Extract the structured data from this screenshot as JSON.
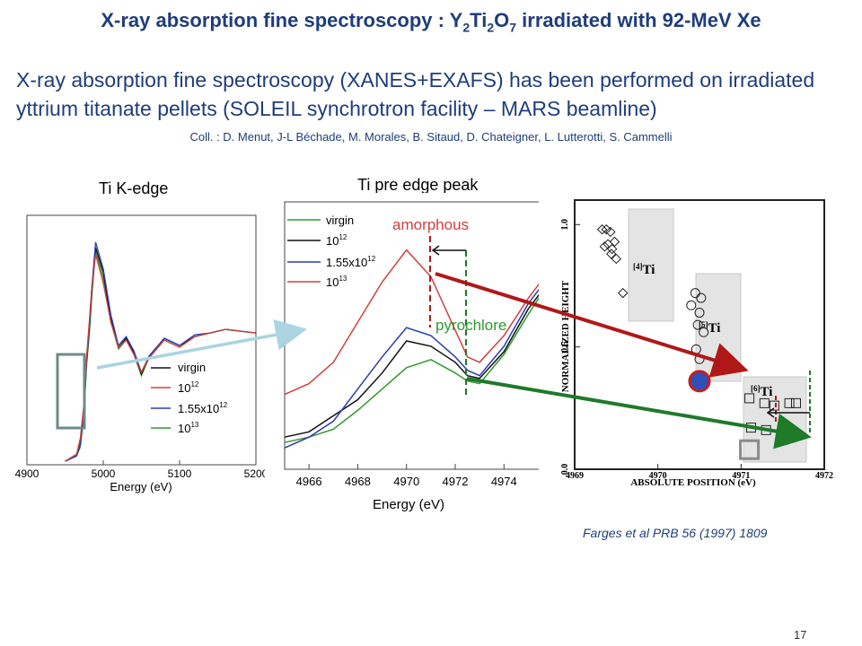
{
  "slide": {
    "title_prefix": "X-ray absorption fine spectroscopy : Y",
    "title_sub1": "2",
    "title_mid1": "Ti",
    "title_sub2": "2",
    "title_mid2": "O",
    "title_sub3": "7",
    "title_suffix": " irradiated with 92-MeV Xe",
    "intro_line1": "X-ray absorption fine spectroscopy (XANES+EXAFS) has been performed on irradiated",
    "intro_line2": "yttrium titanate pellets (SOLEIL synchrotron facility – MARS beamline)",
    "collaborators": "Coll. : D. Menut, J-L Béchade, M. Morales, B. Sitaud, D. Chateigner, L. Lutterotti, S. Cammelli",
    "reference": "Farges et al PRB 56 (1997) 1809",
    "page_number": "17"
  },
  "colors": {
    "title": "#1f3d7a",
    "virgin": "#2e9a2e",
    "dose_1e12": "#111111",
    "dose_1_55e12": "#2a3db5",
    "dose_1e13": "#d0403c",
    "amorphous": "#d0403c",
    "pyrochlore": "#2e9a2e",
    "arrow_red": "#b01818",
    "arrow_green": "#1f7a2a",
    "zoom_box": "#6e8a8a",
    "zoom_arrow": "#a9d4e0"
  },
  "legend": {
    "virgin": "virgin",
    "d1_base": "10",
    "d1_exp": "12",
    "d2_base": "1.55x10",
    "d2_exp": "12",
    "d3_base": "10",
    "d3_exp": "13"
  },
  "chart_data": [
    {
      "type": "line",
      "caption": "Ti K-edge",
      "xlabel": "Energy (eV)",
      "xlim": [
        4900,
        5200
      ],
      "xticks": [
        "4900",
        "5000",
        "5100",
        "5200"
      ],
      "legend_position": "bottom-right",
      "series": [
        {
          "name": "virgin",
          "x": [
            4950,
            4965,
            4970,
            4975,
            4978,
            4982,
            4985,
            4990,
            5000,
            5010,
            5020,
            5030,
            5040,
            5050,
            5060,
            5080,
            5100,
            5120,
            5140,
            5160,
            5180,
            5200
          ],
          "y": [
            0.02,
            0.05,
            0.1,
            0.3,
            0.55,
            0.75,
            0.95,
            1.2,
            1.05,
            0.8,
            0.65,
            0.7,
            0.62,
            0.5,
            0.6,
            0.7,
            0.66,
            0.72,
            0.74,
            0.76,
            0.75,
            0.74
          ]
        },
        {
          "name": "10^12",
          "x": [
            4950,
            4965,
            4970,
            4975,
            4978,
            4982,
            4985,
            4990,
            5000,
            5010,
            5020,
            5030,
            5040,
            5050,
            5060,
            5080,
            5100,
            5120,
            5140,
            5160,
            5180,
            5200
          ],
          "y": [
            0.02,
            0.05,
            0.12,
            0.32,
            0.57,
            0.78,
            0.98,
            1.22,
            1.08,
            0.82,
            0.66,
            0.71,
            0.63,
            0.51,
            0.61,
            0.71,
            0.67,
            0.72,
            0.74,
            0.76,
            0.75,
            0.74
          ]
        },
        {
          "name": "1.55x10^12",
          "x": [
            4950,
            4965,
            4970,
            4975,
            4978,
            4982,
            4985,
            4990,
            5000,
            5010,
            5020,
            5030,
            5040,
            5050,
            5060,
            5080,
            5100,
            5120,
            5140,
            5160,
            5180,
            5200
          ],
          "y": [
            0.02,
            0.05,
            0.12,
            0.33,
            0.58,
            0.8,
            1.0,
            1.25,
            1.1,
            0.84,
            0.67,
            0.72,
            0.64,
            0.52,
            0.61,
            0.71,
            0.67,
            0.73,
            0.74,
            0.76,
            0.75,
            0.74
          ]
        },
        {
          "name": "10^13",
          "x": [
            4950,
            4965,
            4970,
            4975,
            4978,
            4982,
            4985,
            4990,
            5000,
            5010,
            5020,
            5030,
            5040,
            5050,
            5060,
            5080,
            5100,
            5120,
            5140,
            5160,
            5180,
            5200
          ],
          "y": [
            0.02,
            0.06,
            0.15,
            0.36,
            0.6,
            0.82,
            1.0,
            1.18,
            1.02,
            0.8,
            0.66,
            0.7,
            0.62,
            0.52,
            0.6,
            0.7,
            0.66,
            0.72,
            0.74,
            0.76,
            0.75,
            0.74
          ]
        }
      ]
    },
    {
      "type": "line",
      "caption": "Ti pre edge peak",
      "xlabel": "Energy (eV)",
      "xlim": [
        4965,
        4975.5
      ],
      "ylim": [
        0,
        1
      ],
      "xticks": [
        "4966",
        "4968",
        "4970",
        "4972",
        "4974"
      ],
      "legend_position": "top-left",
      "annotations": {
        "amorphous": "amorphous",
        "pyrochlore": "pyrochlore"
      },
      "series": [
        {
          "name": "virgin",
          "x": [
            4965,
            4966,
            4967,
            4968,
            4969,
            4970,
            4971,
            4972,
            4972.5,
            4973,
            4974,
            4975,
            4975.5
          ],
          "y": [
            0.1,
            0.12,
            0.15,
            0.22,
            0.3,
            0.38,
            0.41,
            0.36,
            0.33,
            0.32,
            0.43,
            0.58,
            0.65
          ]
        },
        {
          "name": "10^12",
          "x": [
            4965,
            4966,
            4967,
            4968,
            4969,
            4970,
            4971,
            4972,
            4972.5,
            4973,
            4974,
            4975,
            4975.5
          ],
          "y": [
            0.12,
            0.14,
            0.2,
            0.26,
            0.36,
            0.48,
            0.46,
            0.4,
            0.35,
            0.34,
            0.44,
            0.6,
            0.66
          ]
        },
        {
          "name": "1.55x10^12",
          "x": [
            4965,
            4966,
            4967,
            4968,
            4969,
            4970,
            4971,
            4972,
            4972.5,
            4973,
            4974,
            4975,
            4975.5
          ],
          "y": [
            0.08,
            0.12,
            0.18,
            0.3,
            0.42,
            0.53,
            0.5,
            0.42,
            0.37,
            0.35,
            0.46,
            0.62,
            0.68
          ]
        },
        {
          "name": "10^13",
          "x": [
            4965,
            4966,
            4967,
            4968,
            4969,
            4970,
            4971,
            4972,
            4972.5,
            4973,
            4974,
            4975,
            4975.5
          ],
          "y": [
            0.28,
            0.32,
            0.4,
            0.55,
            0.7,
            0.82,
            0.72,
            0.52,
            0.42,
            0.4,
            0.5,
            0.64,
            0.7
          ]
        }
      ]
    },
    {
      "type": "scatter",
      "source": "Farges et al PRB 56 (1997) 1809",
      "xlabel": "ABSOLUTE POSITION (eV)",
      "ylabel": "NORMALIZED HEIGHT",
      "xlim": [
        4969,
        4972
      ],
      "ylim": [
        0,
        1.1
      ],
      "xticks": [
        "4969",
        "4970",
        "4971",
        "4972"
      ],
      "yticks": [
        "0.0",
        "0.5",
        "1.0"
      ],
      "groups": [
        {
          "label_pre": "[4]",
          "label": "Ti",
          "marker": "diamond",
          "x": [
            4969.33,
            4969.38,
            4969.43,
            4969.48,
            4969.4,
            4969.36,
            4969.45,
            4969.44,
            4969.5,
            4969.58
          ],
          "y": [
            0.98,
            0.98,
            0.97,
            0.93,
            0.92,
            0.91,
            0.9,
            0.88,
            0.86,
            0.72
          ]
        },
        {
          "label_pre": "[5]",
          "label": "Ti",
          "marker": "circle",
          "x": [
            4970.45,
            4970.52,
            4970.4,
            4970.5,
            4970.48,
            4970.55,
            4970.46,
            4970.5
          ],
          "y": [
            0.72,
            0.7,
            0.67,
            0.64,
            0.59,
            0.56,
            0.49,
            0.45
          ]
        },
        {
          "label_pre": "[6]",
          "label": "Ti",
          "marker": "square",
          "x": [
            4971.1,
            4971.28,
            4971.4,
            4971.58,
            4971.66,
            4971.12,
            4971.3,
            4971.5,
            4971.62,
            4971.5
          ],
          "y": [
            0.29,
            0.27,
            0.26,
            0.27,
            0.27,
            0.17,
            0.16,
            0.15,
            0.14,
            0.12
          ]
        }
      ],
      "highlights": [
        {
          "series": "amorphous",
          "marker": "circle",
          "x": 4970.5,
          "y": 0.36
        },
        {
          "series": "pyrochlore",
          "marker": "square",
          "x": 4971.1,
          "y": 0.08
        }
      ]
    }
  ]
}
